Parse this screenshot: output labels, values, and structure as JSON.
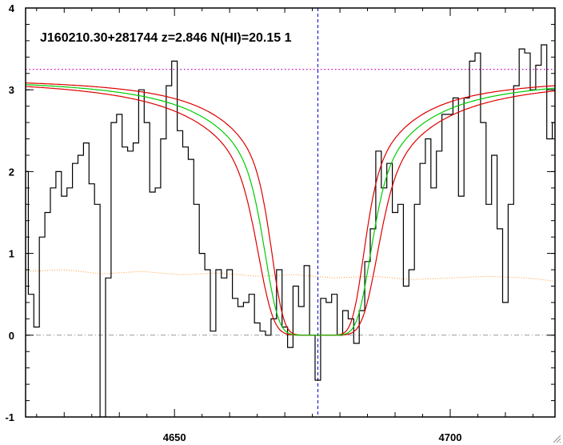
{
  "chart_data": {
    "type": "line",
    "title": "J160210.30+281744 z=2.846 N(HI)=20.15 1",
    "xlabel": "",
    "ylabel": "",
    "xlim": [
      4623,
      4719
    ],
    "ylim": [
      -1,
      4
    ],
    "x_ticks": [
      4650,
      4700
    ],
    "y_ticks": [
      -1,
      0,
      1,
      2,
      3,
      4
    ],
    "grid": false,
    "legend": "none",
    "reference_lines": {
      "continuum_level": 3.25,
      "zero_level": 0,
      "absorber_center_x": 4676
    },
    "colors": {
      "flux": "#000000",
      "model": "#00cc00",
      "model_bounds": "#dd0000",
      "error": "#ff9933",
      "continuum": "#cc00cc",
      "center_line": "#0000cc",
      "zero_line": "#999999"
    },
    "model": {
      "center": 4676,
      "continuum": 3.15,
      "line_width": 8.5,
      "bound_line_widths": [
        7.4,
        9.6
      ]
    },
    "series": [
      {
        "x": [
          4623,
          4624,
          4625,
          4626,
          4627,
          4628,
          4629,
          4630,
          4631,
          4632,
          4633,
          4634,
          4635,
          4636,
          4637,
          4638,
          4639,
          4640,
          4641,
          4642,
          4643,
          4644,
          4645,
          4646,
          4647,
          4648,
          4649,
          4650,
          4651,
          4652,
          4653,
          4654,
          4655,
          4656,
          4657,
          4658,
          4659,
          4660,
          4661,
          4662,
          4663,
          4664,
          4665,
          4666,
          4667,
          4668,
          4669,
          4670,
          4671,
          4672,
          4673,
          4674,
          4675,
          4676,
          4677,
          4678,
          4679,
          4680,
          4681,
          4682,
          4683,
          4684,
          4685,
          4686,
          4687,
          4688,
          4689,
          4690,
          4691,
          4692,
          4693,
          4694,
          4695,
          4696,
          4697,
          4698,
          4699,
          4700,
          4701,
          4702,
          4703,
          4704,
          4705,
          4706,
          4707,
          4708,
          4709,
          4710,
          4711,
          4712,
          4713,
          4714,
          4715,
          4716,
          4717,
          4718,
          4719
        ],
        "values": [
          2.0,
          0.5,
          0.1,
          1.2,
          1.5,
          1.8,
          2.0,
          1.7,
          1.8,
          2.1,
          2.2,
          2.35,
          1.85,
          1.6,
          -1.0,
          0.7,
          2.6,
          2.7,
          2.3,
          2.25,
          2.35,
          3.0,
          2.6,
          1.75,
          1.8,
          2.4,
          3.05,
          3.35,
          2.5,
          2.3,
          2.15,
          1.6,
          1.0,
          0.8,
          0.05,
          0.8,
          0.7,
          0.8,
          0.45,
          0.35,
          0.4,
          0.5,
          0.15,
          0.05,
          0.0,
          0.2,
          0.8,
          0.1,
          -0.15,
          0.6,
          0.35,
          0.85,
          0.0,
          -0.55,
          0.45,
          0.4,
          0.5,
          0.0,
          0.3,
          0.2,
          -0.1,
          0.3,
          0.9,
          1.3,
          2.25,
          1.8,
          2.1,
          1.5,
          1.6,
          0.6,
          0.8,
          1.6,
          2.1,
          2.4,
          1.8,
          2.25,
          2.7,
          2.7,
          2.9,
          1.7,
          2.9,
          3.35,
          3.45,
          2.6,
          1.6,
          2.2,
          1.3,
          0.4,
          1.6,
          3.05,
          3.5,
          3.45,
          3.0,
          3.3,
          3.55,
          2.4,
          2.6
        ],
        "line_style": "steps"
      },
      {
        "x": [
          4623,
          4630,
          4637,
          4644,
          4651,
          4658,
          4665,
          4672,
          4679,
          4686,
          4693,
          4700,
          4707,
          4714,
          4719
        ],
        "values": [
          0.78,
          0.8,
          0.75,
          0.78,
          0.74,
          0.76,
          0.72,
          0.74,
          0.7,
          0.72,
          0.68,
          0.7,
          0.72,
          0.7,
          0.66
        ],
        "line_style": "dotted"
      }
    ]
  }
}
